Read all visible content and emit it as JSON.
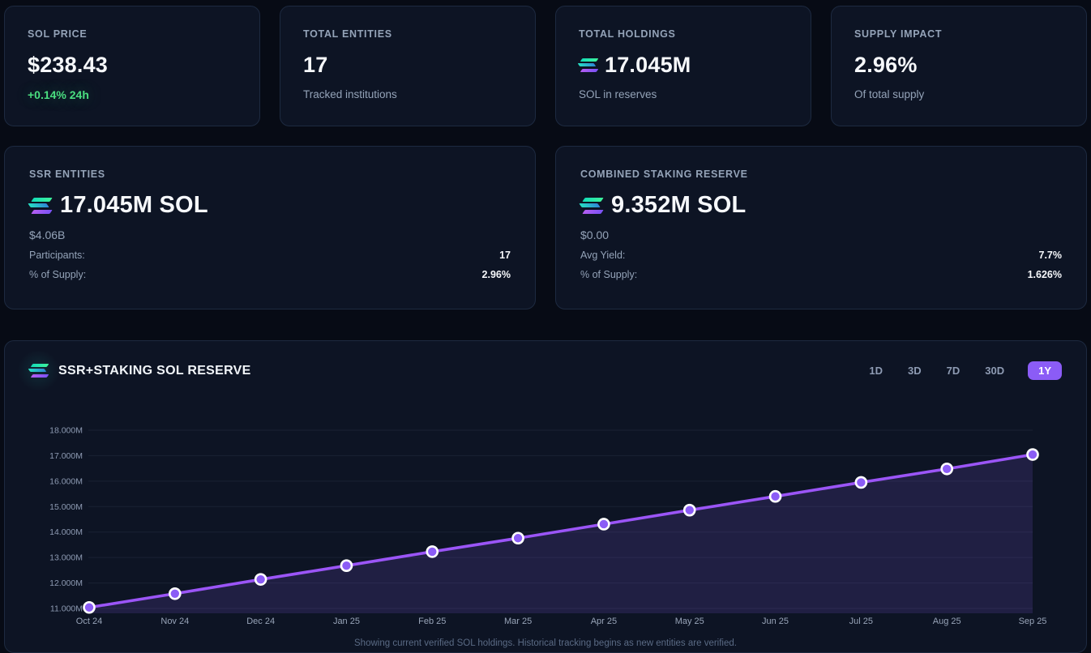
{
  "stats": [
    {
      "label": "SOL PRICE",
      "value": "$238.43",
      "sub": "+0.14% 24h",
      "sub_style": "green"
    },
    {
      "label": "TOTAL ENTITIES",
      "value": "17",
      "sub": "Tracked institutions",
      "sub_style": "muted"
    },
    {
      "label": "TOTAL HOLDINGS",
      "value": "17.045M",
      "sub": "SOL in reserves",
      "sub_style": "muted",
      "icon": "solana-logo"
    },
    {
      "label": "SUPPLY IMPACT",
      "value": "2.96%",
      "sub": "Of total supply",
      "sub_style": "muted"
    }
  ],
  "reserve_cards": [
    {
      "label": "SSR ENTITIES",
      "icon": "solana-logo",
      "value": "17.045M SOL",
      "usd": "$4.06B",
      "rows": [
        {
          "label": "Participants:",
          "value": "17"
        },
        {
          "label": "% of Supply:",
          "value": "2.96%"
        }
      ]
    },
    {
      "label": "COMBINED STAKING RESERVE",
      "icon": "solana-logo",
      "value": "9.352M SOL",
      "usd": "$0.00",
      "rows": [
        {
          "label": "Avg Yield:",
          "value": "7.7%"
        },
        {
          "label": "% of Supply:",
          "value": "1.626%"
        }
      ]
    }
  ],
  "chart": {
    "title": "SSR+STAKING SOL RESERVE",
    "icon": "solana-logo",
    "ranges": [
      "1D",
      "3D",
      "7D",
      "30D",
      "1Y"
    ],
    "active_range": "1Y",
    "footnote": "Showing current verified SOL holdings. Historical tracking begins as new entities are verified."
  },
  "chart_data": {
    "type": "line",
    "x": [
      "Oct 24",
      "Nov 24",
      "Dec 24",
      "Jan 25",
      "Feb 25",
      "Mar 25",
      "Apr 25",
      "May 25",
      "Jun 25",
      "Jul 25",
      "Aug 25",
      "Sep 25"
    ],
    "series": [
      {
        "name": "SSR+Staking SOL Reserve",
        "values": [
          11.04,
          11.58,
          12.14,
          12.68,
          13.23,
          13.76,
          14.31,
          14.86,
          15.4,
          15.95,
          16.48,
          17.045
        ]
      }
    ],
    "ylim": [
      11,
      18
    ],
    "yticks": [
      "11.000M",
      "12.000M",
      "13.000M",
      "14.000M",
      "15.000M",
      "16.000M",
      "17.000M",
      "18.000M"
    ],
    "grid": true,
    "legend": "none",
    "line_color": "#9b55f7",
    "dot_color": "#8b5cf6",
    "dot_stroke": "#ffffff",
    "area_color": "rgba(139,92,246,0.15)",
    "grid_color": "rgba(148,163,184,0.10)"
  },
  "colors": {
    "accent_purple": "#8b5cf6",
    "positive_green": "#4ade80",
    "card_bg": "#0d1424",
    "page_bg": "#070b15"
  }
}
